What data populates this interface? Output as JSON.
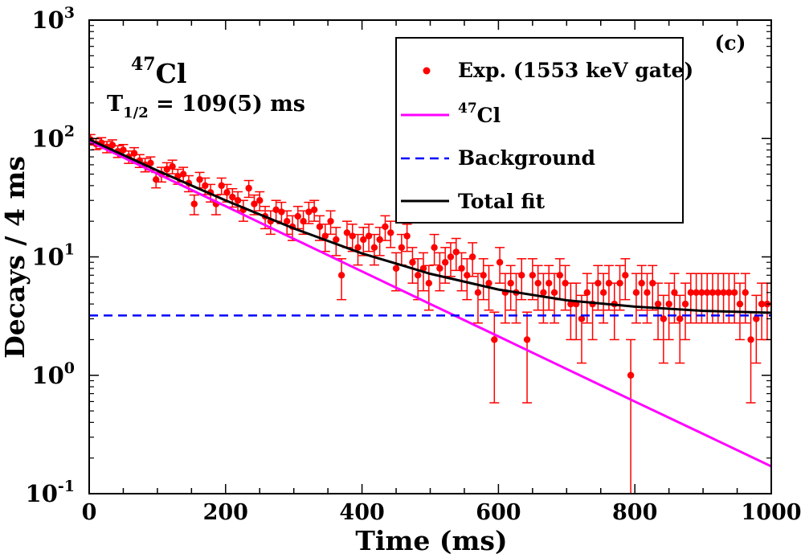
{
  "chart_data": {
    "type": "scatter",
    "panel_label": "(c)",
    "xlabel": "Time (ms)",
    "ylabel": "Decays / 4 ms",
    "xlim": [
      0,
      1000
    ],
    "ylim": [
      0.1,
      1000
    ],
    "yscale": "log",
    "x_ticks": [
      "0",
      "200",
      "400",
      "600",
      "800",
      "1000"
    ],
    "y_ticks": [
      {
        "base": "10",
        "exp": "-1"
      },
      {
        "base": "10",
        "exp": "0"
      },
      {
        "base": "10",
        "exp": "1"
      },
      {
        "base": "10",
        "exp": "2"
      },
      {
        "base": "10",
        "exp": "3"
      }
    ],
    "annotation": {
      "isotope_mass": "47",
      "isotope_symbol": "Cl",
      "halflife_prefix": "T",
      "halflife_sub": "1/2",
      "halflife_value": " = 109(5) ms"
    },
    "legend": {
      "placement": "top-right",
      "entries": [
        {
          "label": "Exp. (1553 keV gate)",
          "style": "dots",
          "color": "#ff0000"
        },
        {
          "label_sup": "47",
          "label": "Cl",
          "style": "line",
          "color": "#ff00ff"
        },
        {
          "label": "Background",
          "style": "dashed",
          "color": "#0000ff"
        },
        {
          "label": "Total fit",
          "style": "line",
          "color": "#000000"
        }
      ]
    },
    "series": [
      {
        "name": "Exp. (1553 keV gate)",
        "color": "#ff0000",
        "x": [
          2,
          10,
          18,
          26,
          34,
          42,
          50,
          58,
          66,
          74,
          82,
          90,
          98,
          106,
          114,
          122,
          130,
          138,
          146,
          154,
          162,
          170,
          178,
          186,
          194,
          202,
          210,
          218,
          226,
          234,
          242,
          250,
          258,
          266,
          274,
          282,
          290,
          298,
          306,
          314,
          322,
          330,
          338,
          346,
          354,
          362,
          370,
          378,
          386,
          394,
          402,
          410,
          418,
          426,
          434,
          442,
          450,
          458,
          466,
          474,
          482,
          490,
          498,
          506,
          514,
          522,
          530,
          538,
          546,
          554,
          562,
          570,
          578,
          586,
          594,
          602,
          610,
          618,
          626,
          634,
          642,
          650,
          658,
          666,
          674,
          682,
          690,
          698,
          706,
          714,
          722,
          730,
          738,
          746,
          754,
          762,
          770,
          778,
          786,
          794,
          802,
          810,
          818,
          826,
          834,
          842,
          850,
          858,
          866,
          874,
          882,
          890,
          898,
          906,
          914,
          922,
          930,
          938,
          946,
          954,
          962,
          970,
          978,
          986,
          994
        ],
        "y": [
          98,
          90,
          92,
          85,
          88,
          78,
          80,
          70,
          75,
          65,
          60,
          62,
          45,
          50,
          55,
          58,
          48,
          50,
          42,
          28,
          45,
          40,
          35,
          28,
          40,
          35,
          32,
          30,
          25,
          38,
          28,
          30,
          22,
          20,
          25,
          24,
          20,
          18,
          22,
          20,
          24,
          25,
          18,
          15,
          20,
          14,
          7,
          16,
          15,
          12,
          14,
          15,
          12,
          14,
          18,
          16,
          8,
          12,
          15,
          9,
          7,
          8,
          6,
          12,
          8,
          9,
          10,
          11,
          8,
          7,
          10,
          5,
          7,
          6,
          2,
          9,
          5,
          6,
          5,
          7,
          2,
          7,
          6,
          5,
          6,
          5,
          7,
          6,
          4,
          4,
          3,
          5,
          4,
          6,
          5,
          6,
          4,
          6,
          7,
          1,
          5,
          6,
          5,
          6,
          4,
          3,
          4,
          5,
          3,
          4,
          5,
          5,
          5,
          5,
          5,
          5,
          5,
          5,
          5,
          4,
          5,
          2,
          3,
          4,
          4
        ]
      },
      {
        "name": "47Cl",
        "color": "#ff00ff",
        "x": [
          0,
          100,
          200,
          300,
          400,
          500,
          600,
          700,
          800,
          900,
          1000
        ],
        "y": [
          95,
          50.4,
          26.8,
          14.2,
          7.54,
          4.0,
          2.13,
          1.13,
          0.6,
          0.32,
          0.17
        ]
      },
      {
        "name": "Background",
        "color": "#0000ff",
        "x": [
          0,
          1000
        ],
        "y": [
          3.2,
          3.2
        ]
      },
      {
        "name": "Total fit",
        "color": "#000000",
        "x": [
          0,
          100,
          200,
          300,
          400,
          500,
          600,
          700,
          800,
          900,
          1000
        ],
        "y": [
          98.2,
          53.6,
          30.0,
          17.4,
          10.7,
          7.2,
          5.3,
          4.3,
          3.8,
          3.5,
          3.37
        ]
      }
    ]
  }
}
